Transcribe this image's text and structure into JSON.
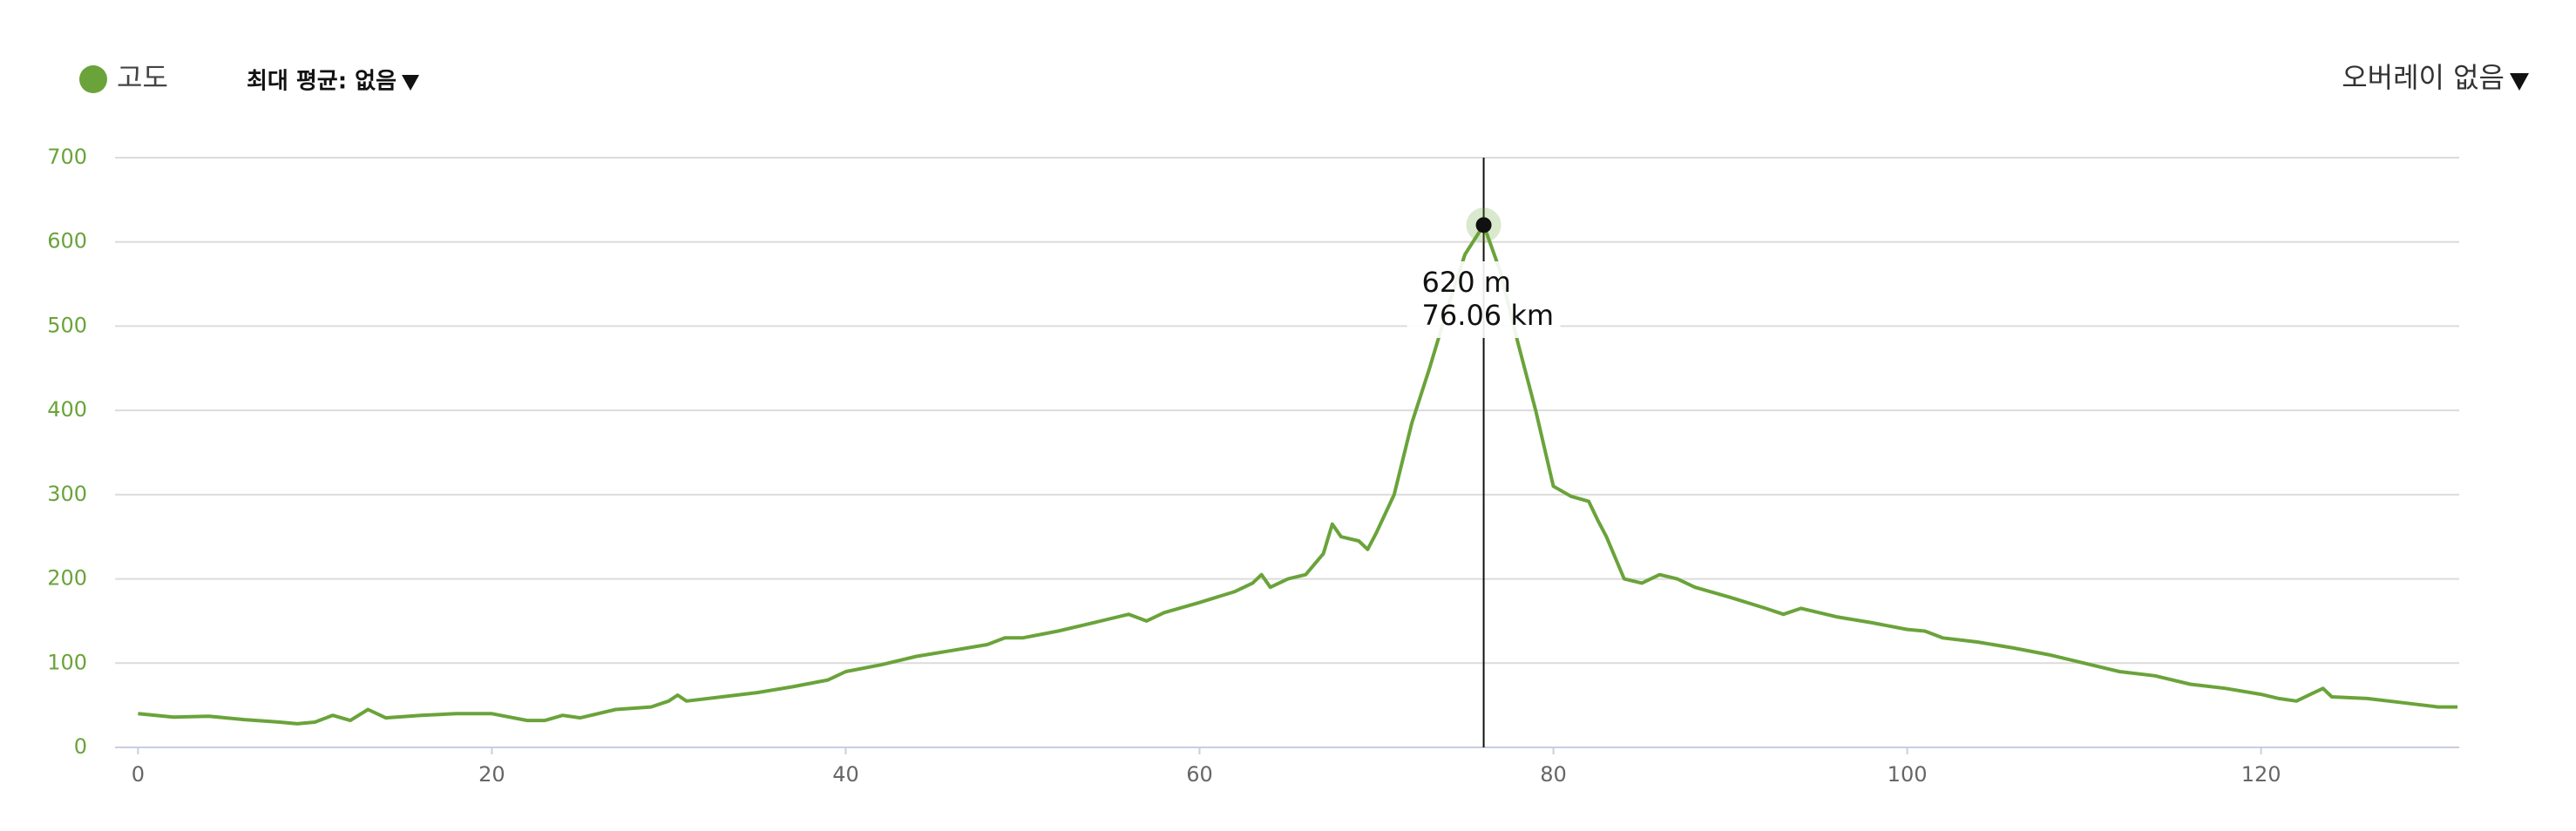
{
  "chart_data": {
    "type": "line",
    "series": [
      {
        "name": "고도",
        "color": "#6aa33a",
        "values": [
          40,
          36,
          37,
          33,
          30,
          28,
          30,
          38,
          32,
          45,
          35,
          38,
          40,
          40,
          32,
          32,
          38,
          35,
          45,
          48,
          55,
          62,
          55,
          60,
          65,
          72,
          80,
          90,
          98,
          108,
          115,
          122,
          130,
          130,
          138,
          148,
          158,
          150,
          160,
          172,
          185,
          195,
          205,
          190,
          200,
          205,
          230,
          265,
          250,
          245,
          235,
          255,
          300,
          385,
          450,
          520,
          585,
          620,
          565,
          480,
          400,
          310,
          298,
          292,
          270,
          250,
          200,
          195,
          205,
          200,
          190,
          178,
          165,
          158,
          165,
          155,
          148,
          140,
          138,
          130,
          125,
          118,
          110,
          100,
          90,
          85,
          75,
          70,
          63,
          58,
          55,
          65,
          70,
          60,
          58,
          53,
          48,
          48
        ]
      }
    ],
    "x": [
      0,
      2,
      4,
      6,
      8,
      9,
      10,
      11,
      12,
      13,
      14,
      16,
      18,
      20,
      22,
      23,
      24,
      25,
      27,
      29,
      30,
      30.5,
      31,
      33,
      35,
      37,
      39,
      40,
      42,
      44,
      46,
      48,
      49,
      50,
      52,
      54,
      56,
      57,
      58,
      60,
      62,
      63,
      63.5,
      64,
      65,
      66,
      67,
      67.5,
      68,
      69,
      69.5,
      70,
      71,
      72,
      73,
      74,
      75,
      76.06,
      77,
      78,
      79,
      80,
      81,
      82,
      82.5,
      83,
      84,
      85,
      86,
      87,
      88,
      90,
      92,
      93,
      94,
      96,
      98,
      100,
      101,
      102,
      104,
      106,
      108,
      110,
      112,
      114,
      116,
      118,
      120,
      121,
      122,
      123,
      123.5,
      124,
      126,
      128,
      130,
      131.1
    ],
    "xlim": [
      -1.3,
      131.2
    ],
    "xticks": [
      0,
      20,
      40,
      60,
      80,
      100,
      120
    ],
    "ylim": [
      0,
      700
    ],
    "yticks": [
      0,
      100,
      200,
      300,
      400,
      500,
      600,
      700
    ],
    "grid": true,
    "hover": {
      "x": 76.06,
      "y": 620,
      "y_label": "620 m",
      "x_label": "76.06 km"
    },
    "controls": {
      "average": "최대 평균: 없음",
      "overlay": "오버레이 없음"
    }
  }
}
